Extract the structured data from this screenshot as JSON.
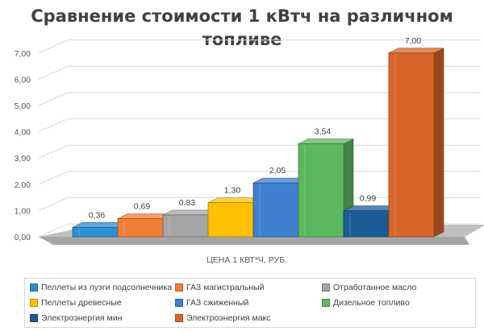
{
  "title": "Сравнение стоимости 1 кВтч на различном топливе",
  "chart_data": {
    "type": "bar",
    "title": "Сравнение стоимости 1 кВтч на различном топливе",
    "xlabel": "ЦЕНА 1 КВТ*Ч, РУБ.",
    "ylabel": "",
    "ylim": [
      0,
      7
    ],
    "y_ticks": [
      "0,00",
      "1,00",
      "2,00",
      "3,00",
      "4,00",
      "5,00",
      "6,00",
      "7,00"
    ],
    "grid": true,
    "legend_position": "bottom",
    "categories": [
      "ЦЕНА 1 КВТ*Ч, РУБ."
    ],
    "series": [
      {
        "name": "Пеллеты из лузги подсолнечника",
        "values": [
          0.36
        ],
        "label": "0,36",
        "color": "#2e8ed2"
      },
      {
        "name": "ГАЗ магистральный",
        "values": [
          0.69
        ],
        "label": "0,69",
        "color": "#f07e35"
      },
      {
        "name": "Отработанное масло",
        "values": [
          0.83
        ],
        "label": "0,83",
        "color": "#a5a5a5"
      },
      {
        "name": "Пеллеты древесные",
        "values": [
          1.3
        ],
        "label": "1,30",
        "color": "#ffc000"
      },
      {
        "name": "ГАЗ сжиженный",
        "values": [
          2.05
        ],
        "label": "2,05",
        "color": "#3f7fd0"
      },
      {
        "name": "Дизельное топливо",
        "values": [
          3.54
        ],
        "label": "3,54",
        "color": "#5cb85c"
      },
      {
        "name": "Электроэнергия мин",
        "values": [
          0.99
        ],
        "label": "0,99",
        "color": "#1c5c96"
      },
      {
        "name": "Электроэнергия макс",
        "values": [
          7.0
        ],
        "label": "7,00",
        "color": "#d9642a"
      }
    ]
  }
}
